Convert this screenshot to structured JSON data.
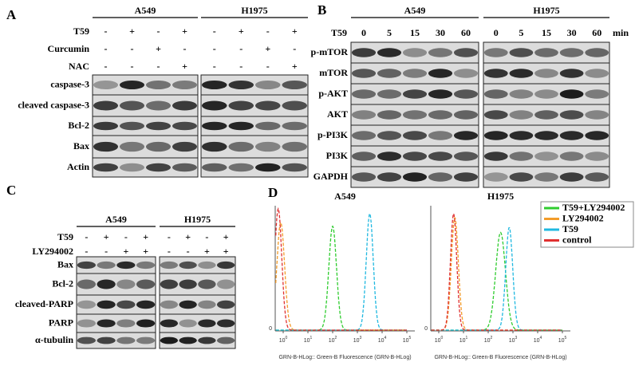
{
  "panels": {
    "A": {
      "label": "A",
      "cell_lines": [
        "A549",
        "H1975"
      ],
      "treatments": [
        {
          "name": "T59",
          "signs": [
            "-",
            "+",
            "-",
            "+"
          ]
        },
        {
          "name": "Curcumin",
          "signs": [
            "-",
            "-",
            "+",
            "-"
          ]
        },
        {
          "name": "NAC",
          "signs": [
            "-",
            "-",
            "-",
            "+"
          ]
        }
      ],
      "blots": [
        "caspase-3",
        "cleaved caspase-3",
        "Bcl-2",
        "Bax",
        "Actin"
      ]
    },
    "B": {
      "label": "B",
      "cell_lines": [
        "A549",
        "H1975"
      ],
      "time_label": "T59",
      "times": [
        0,
        5,
        15,
        30,
        60
      ],
      "unit": "min",
      "blots": [
        "p-mTOR",
        "mTOR",
        "p-AKT",
        "AKT",
        "p-PI3K",
        "PI3K",
        "GAPDH"
      ]
    },
    "C": {
      "label": "C",
      "cell_lines": [
        "A549",
        "H1975"
      ],
      "treatments": [
        {
          "name": "T59",
          "signs": [
            "-",
            "+",
            "-",
            "+"
          ]
        },
        {
          "name": "LY294002",
          "signs": [
            "-",
            "-",
            "+",
            "+"
          ]
        }
      ],
      "blots": [
        "Bax",
        "Bcl-2",
        "cleaved-PARP",
        "PARP",
        "α-tubulin"
      ]
    },
    "D": {
      "label": "D",
      "plots": [
        "A549",
        "H1975"
      ],
      "x_axis_label": "GRN-B-HLog:: Green-B Fluorescence (GRN-B-HLog)",
      "xticks": [
        {
          "base": "10",
          "exp": "0"
        },
        {
          "base": "10",
          "exp": "1"
        },
        {
          "base": "10",
          "exp": "2"
        },
        {
          "base": "10",
          "exp": "3"
        },
        {
          "base": "10",
          "exp": "4"
        },
        {
          "base": "10",
          "exp": "5"
        }
      ],
      "y_tick": "0",
      "legend": [
        {
          "name": "T59+LY294002",
          "color": "#2ecc2e"
        },
        {
          "name": "LY294002",
          "color": "#f39c2a"
        },
        {
          "name": "T59",
          "color": "#1fb8e0"
        },
        {
          "name": "control",
          "color": "#e03030"
        }
      ]
    }
  }
}
